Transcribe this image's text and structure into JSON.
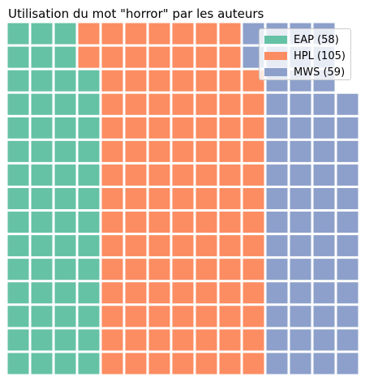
{
  "chart_data": {
    "type": "waffle",
    "title": "Utilisation du mot \"horror\" par les auteurs",
    "rows": 15,
    "columns": 15,
    "series": [
      {
        "name": "EAP",
        "label": "EAP (58)",
        "value": 58,
        "color": "#66c2a5"
      },
      {
        "name": "HPL",
        "label": "HPL (105)",
        "value": 105,
        "color": "#fc8d62"
      },
      {
        "name": "MWS",
        "label": "MWS (59)",
        "value": 59,
        "color": "#8da0cb"
      }
    ],
    "legend_position": "top-right"
  }
}
